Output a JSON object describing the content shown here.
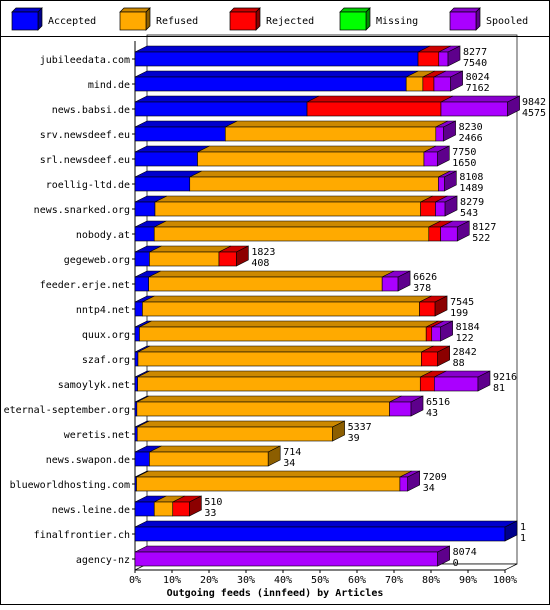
{
  "chart_data": {
    "type": "bar",
    "orientation": "horizontal",
    "stacked": true,
    "style": "3d",
    "title": "",
    "xlabel": "Outgoing feeds (innfeed) by Articles",
    "ylabel": "",
    "xlim": [
      0,
      100
    ],
    "x_unit": "%",
    "x_ticks": [
      "0%",
      "10%",
      "20%",
      "30%",
      "40%",
      "50%",
      "60%",
      "70%",
      "80%",
      "90%",
      "100%"
    ],
    "grid": false,
    "legend_position": "top",
    "legend": [
      {
        "name": "Accepted",
        "color": "#0000ff"
      },
      {
        "name": "Refused",
        "color": "#ffaa00"
      },
      {
        "name": "Rejected",
        "color": "#ff0000"
      },
      {
        "name": "Missing",
        "color": "#00ff00"
      },
      {
        "name": "Spooled",
        "color": "#aa00ff"
      }
    ],
    "categories": [
      "jubileedata.com",
      "mind.de",
      "news.babsi.de",
      "srv.newsdeef.eu",
      "srl.newsdeef.eu",
      "roellig-ltd.de",
      "news.snarked.org",
      "nobody.at",
      "gegeweb.org",
      "feeder.erje.net",
      "nntp4.net",
      "quux.org",
      "szaf.org",
      "samoylyk.net",
      "eternal-september.org",
      "weretis.net",
      "news.swapon.de",
      "blueworldhosting.com",
      "news.leine.de",
      "finalfrontier.ch",
      "agency-nz"
    ],
    "series": [
      {
        "name": "Accepted",
        "values": [
          76.5,
          73.3,
          46.5,
          24.4,
          16.9,
          14.8,
          5.4,
          5.2,
          3.9,
          3.7,
          2.0,
          1.2,
          0.8,
          0.7,
          0.5,
          0.6,
          3.9,
          0.4,
          5.2,
          100,
          0
        ]
      },
      {
        "name": "Refused",
        "values": [
          0,
          4.5,
          0,
          56.9,
          61.2,
          67.2,
          71.8,
          74.2,
          18.8,
          63.1,
          74.9,
          77.5,
          76.6,
          76.4,
          68.3,
          52.8,
          32.1,
          71.2,
          5.0,
          0,
          0
        ]
      },
      {
        "name": "Rejected",
        "values": [
          5.6,
          3.0,
          36.2,
          0,
          0,
          0,
          4.0,
          3.2,
          4.7,
          0,
          4.2,
          1.5,
          4.4,
          3.8,
          0,
          0,
          0,
          0,
          4.5,
          0,
          0
        ]
      },
      {
        "name": "Missing",
        "values": [
          0,
          0,
          0,
          0,
          0,
          0,
          0,
          0,
          0,
          0,
          0,
          0,
          0,
          0,
          0,
          0,
          0,
          0,
          0,
          0,
          0
        ]
      },
      {
        "name": "Spooled",
        "values": [
          2.5,
          4.5,
          18.0,
          2.1,
          3.6,
          1.6,
          2.6,
          4.5,
          0,
          4.3,
          0,
          2.4,
          0,
          11.8,
          5.8,
          0,
          0,
          2.1,
          0,
          0,
          81.8
        ]
      }
    ],
    "bar_labels": [
      [
        "8277",
        "7540"
      ],
      [
        "8024",
        "7162"
      ],
      [
        "9842",
        "4575"
      ],
      [
        "8230",
        "2466"
      ],
      [
        "7750",
        "1650"
      ],
      [
        "8108",
        "1489"
      ],
      [
        "8279",
        "543"
      ],
      [
        "8127",
        "522"
      ],
      [
        "1823",
        "408"
      ],
      [
        "6626",
        "378"
      ],
      [
        "7545",
        "199"
      ],
      [
        "8184",
        "122"
      ],
      [
        "2842",
        "88"
      ],
      [
        "9216",
        "81"
      ],
      [
        "6516",
        "43"
      ],
      [
        "5337",
        "39"
      ],
      [
        "714",
        "34"
      ],
      [
        "7209",
        "34"
      ],
      [
        "510",
        "33"
      ],
      [
        "1",
        "1"
      ],
      [
        "8074",
        "0"
      ]
    ]
  }
}
